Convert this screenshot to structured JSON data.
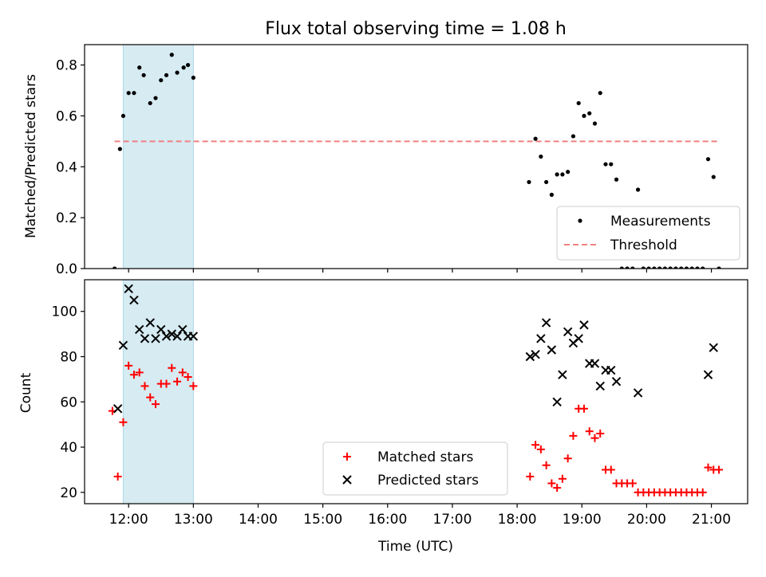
{
  "title": "Flux total observing time = 1.08 h",
  "chart_data": [
    {
      "type": "scatter",
      "ylabel": "Matched/Predicted stars",
      "ylim": [
        0,
        0.88
      ],
      "yticks": [
        "0.0",
        "0.2",
        "0.4",
        "0.6",
        "0.8"
      ],
      "xlim_hours": [
        11.32,
        21.56
      ],
      "shaded_interval": [
        "11:55",
        "13:00"
      ],
      "shade_color": "#add8e6",
      "legend_position": "lower right",
      "legend": {
        "measurements": "Measurements",
        "threshold": "Threshold"
      },
      "threshold": {
        "value": 0.5,
        "x_range": [
          "11:47",
          "21:07"
        ],
        "color": "#f08080"
      },
      "series": [
        {
          "name": "Measurements",
          "color": "#000000",
          "points": [
            [
              "11:47",
              0.0
            ],
            [
              "11:52",
              0.47
            ],
            [
              "11:55",
              0.6
            ],
            [
              "12:00",
              0.69
            ],
            [
              "12:05",
              0.69
            ],
            [
              "12:10",
              0.79
            ],
            [
              "12:14",
              0.76
            ],
            [
              "12:20",
              0.65
            ],
            [
              "12:25",
              0.67
            ],
            [
              "12:30",
              0.74
            ],
            [
              "12:35",
              0.76
            ],
            [
              "12:40",
              0.84
            ],
            [
              "12:45",
              0.77
            ],
            [
              "12:51",
              0.79
            ],
            [
              "12:55",
              0.8
            ],
            [
              "13:00",
              0.75
            ],
            [
              "18:11",
              0.34
            ],
            [
              "18:17",
              0.51
            ],
            [
              "18:22",
              0.44
            ],
            [
              "18:27",
              0.34
            ],
            [
              "18:32",
              0.29
            ],
            [
              "18:37",
              0.37
            ],
            [
              "18:42",
              0.37
            ],
            [
              "18:47",
              0.38
            ],
            [
              "18:52",
              0.52
            ],
            [
              "18:57",
              0.65
            ],
            [
              "19:02",
              0.6
            ],
            [
              "19:07",
              0.61
            ],
            [
              "19:12",
              0.57
            ],
            [
              "19:17",
              0.69
            ],
            [
              "19:22",
              0.41
            ],
            [
              "19:27",
              0.41
            ],
            [
              "19:32",
              0.35
            ],
            [
              "19:37",
              0.0
            ],
            [
              "19:42",
              0.0
            ],
            [
              "19:47",
              0.0
            ],
            [
              "19:52",
              0.31
            ],
            [
              "19:57",
              0.0
            ],
            [
              "20:02",
              0.0
            ],
            [
              "20:07",
              0.0
            ],
            [
              "20:12",
              0.0
            ],
            [
              "20:17",
              0.0
            ],
            [
              "20:22",
              0.0
            ],
            [
              "20:27",
              0.0
            ],
            [
              "20:32",
              0.0
            ],
            [
              "20:37",
              0.0
            ],
            [
              "20:42",
              0.0
            ],
            [
              "20:47",
              0.0
            ],
            [
              "20:52",
              0.0
            ],
            [
              "20:57",
              0.43
            ],
            [
              "21:02",
              0.36
            ],
            [
              "21:07",
              0.0
            ]
          ]
        }
      ]
    },
    {
      "type": "scatter",
      "ylabel": "Count",
      "xlabel": "Time (UTC)",
      "ylim": [
        15,
        114
      ],
      "yticks": [
        "20",
        "40",
        "60",
        "80",
        "100"
      ],
      "xticks": [
        "12:00",
        "13:00",
        "14:00",
        "15:00",
        "16:00",
        "17:00",
        "18:00",
        "19:00",
        "20:00",
        "21:00"
      ],
      "xlim_hours": [
        11.32,
        21.56
      ],
      "shaded_interval": [
        "11:55",
        "13:00"
      ],
      "shade_color": "#add8e6",
      "legend_position": "lower center",
      "series": [
        {
          "name": "Matched stars",
          "marker": "plus",
          "color": "#ff0000",
          "points": [
            [
              "11:45",
              56
            ],
            [
              "11:50",
              27
            ],
            [
              "11:55",
              51
            ],
            [
              "12:00",
              76
            ],
            [
              "12:05",
              72
            ],
            [
              "12:10",
              73
            ],
            [
              "12:15",
              67
            ],
            [
              "12:20",
              62
            ],
            [
              "12:25",
              59
            ],
            [
              "12:30",
              68
            ],
            [
              "12:35",
              68
            ],
            [
              "12:40",
              75
            ],
            [
              "12:45",
              69
            ],
            [
              "12:50",
              73
            ],
            [
              "12:55",
              71
            ],
            [
              "13:00",
              67
            ],
            [
              "18:12",
              27
            ],
            [
              "18:17",
              41
            ],
            [
              "18:22",
              39
            ],
            [
              "18:27",
              32
            ],
            [
              "18:32",
              24
            ],
            [
              "18:37",
              22
            ],
            [
              "18:42",
              26
            ],
            [
              "18:47",
              35
            ],
            [
              "18:52",
              45
            ],
            [
              "18:57",
              57
            ],
            [
              "19:02",
              57
            ],
            [
              "19:07",
              47
            ],
            [
              "19:12",
              44
            ],
            [
              "19:17",
              46
            ],
            [
              "19:22",
              30
            ],
            [
              "19:27",
              30
            ],
            [
              "19:32",
              24
            ],
            [
              "19:37",
              24
            ],
            [
              "19:42",
              24
            ],
            [
              "19:47",
              24
            ],
            [
              "19:52",
              20
            ],
            [
              "19:57",
              20
            ],
            [
              "20:02",
              20
            ],
            [
              "20:07",
              20
            ],
            [
              "20:12",
              20
            ],
            [
              "20:17",
              20
            ],
            [
              "20:22",
              20
            ],
            [
              "20:27",
              20
            ],
            [
              "20:32",
              20
            ],
            [
              "20:37",
              20
            ],
            [
              "20:42",
              20
            ],
            [
              "20:47",
              20
            ],
            [
              "20:52",
              20
            ],
            [
              "20:57",
              31
            ],
            [
              "21:02",
              30
            ],
            [
              "21:07",
              30
            ]
          ]
        },
        {
          "name": "Predicted stars",
          "marker": "x",
          "color": "#000000",
          "points": [
            [
              "11:50",
              57
            ],
            [
              "11:55",
              85
            ],
            [
              "12:00",
              110
            ],
            [
              "12:05",
              105
            ],
            [
              "12:10",
              92
            ],
            [
              "12:15",
              88
            ],
            [
              "12:20",
              95
            ],
            [
              "12:25",
              88
            ],
            [
              "12:30",
              92
            ],
            [
              "12:35",
              89
            ],
            [
              "12:40",
              90
            ],
            [
              "12:45",
              89
            ],
            [
              "12:50",
              92
            ],
            [
              "12:55",
              89
            ],
            [
              "13:00",
              89
            ],
            [
              "18:12",
              80
            ],
            [
              "18:17",
              81
            ],
            [
              "18:22",
              88
            ],
            [
              "18:27",
              95
            ],
            [
              "18:32",
              83
            ],
            [
              "18:37",
              60
            ],
            [
              "18:42",
              72
            ],
            [
              "18:47",
              91
            ],
            [
              "18:52",
              86
            ],
            [
              "18:57",
              88
            ],
            [
              "19:02",
              94
            ],
            [
              "19:07",
              77
            ],
            [
              "19:12",
              77
            ],
            [
              "19:17",
              67
            ],
            [
              "19:22",
              74
            ],
            [
              "19:27",
              74
            ],
            [
              "19:32",
              69
            ],
            [
              "19:52",
              64
            ],
            [
              "20:57",
              72
            ],
            [
              "21:02",
              84
            ]
          ]
        }
      ]
    }
  ]
}
